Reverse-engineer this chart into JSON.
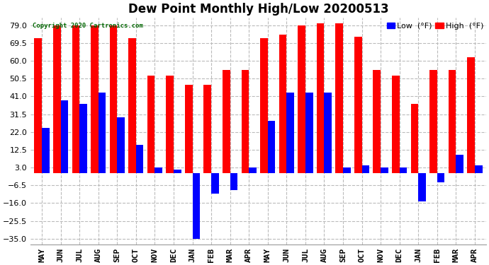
{
  "title": "Dew Point Monthly High/Low 20200513",
  "copyright": "Copyright 2020 Cartronics.com",
  "months": [
    "MAY",
    "JUN",
    "JUL",
    "AUG",
    "SEP",
    "OCT",
    "NOV",
    "DEC",
    "JAN",
    "FEB",
    "MAR",
    "APR",
    "MAY",
    "JUN",
    "JUL",
    "AUG",
    "SEP",
    "OCT",
    "NOV",
    "DEC",
    "JAN",
    "FEB",
    "MAR",
    "APR"
  ],
  "high_values": [
    72,
    79,
    79,
    79,
    79,
    72,
    52,
    52,
    47,
    47,
    55,
    55,
    72,
    74,
    79,
    80,
    80,
    73,
    55,
    52,
    37,
    55,
    55,
    62
  ],
  "low_values": [
    24,
    39,
    37,
    43,
    30,
    15,
    3,
    2,
    -35,
    -11,
    -9,
    3,
    28,
    43,
    43,
    43,
    3,
    4,
    3,
    3,
    -15,
    -5,
    10,
    4
  ],
  "ylim": [
    -38,
    83
  ],
  "yticks": [
    -35.0,
    -25.5,
    -16.0,
    -6.5,
    3.0,
    12.5,
    22.0,
    31.5,
    41.0,
    50.5,
    60.0,
    69.5,
    79.0
  ],
  "bar_width": 0.4,
  "high_color": "#ff0000",
  "low_color": "#0000ff",
  "background_color": "#ffffff",
  "grid_color": "#bbbbbb",
  "title_fontsize": 12,
  "tick_fontsize": 8,
  "legend_low_label": "Low  (°F)",
  "legend_high_label": "High  (°F)"
}
